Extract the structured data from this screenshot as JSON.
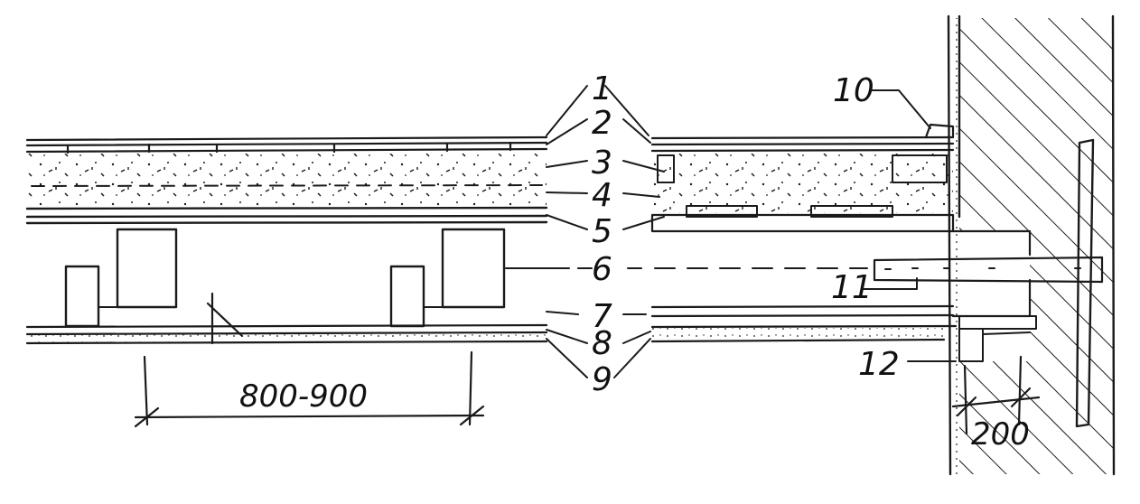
{
  "callouts": [
    "1",
    "2",
    "3",
    "4",
    "5",
    "6",
    "7",
    "8",
    "9",
    "10",
    "11",
    "12"
  ],
  "dimensions": {
    "joist_spacing": "800-900",
    "wall_bearing": "200"
  },
  "colors": {
    "ink": "#1a1a1a",
    "paper": "#ffffff"
  }
}
